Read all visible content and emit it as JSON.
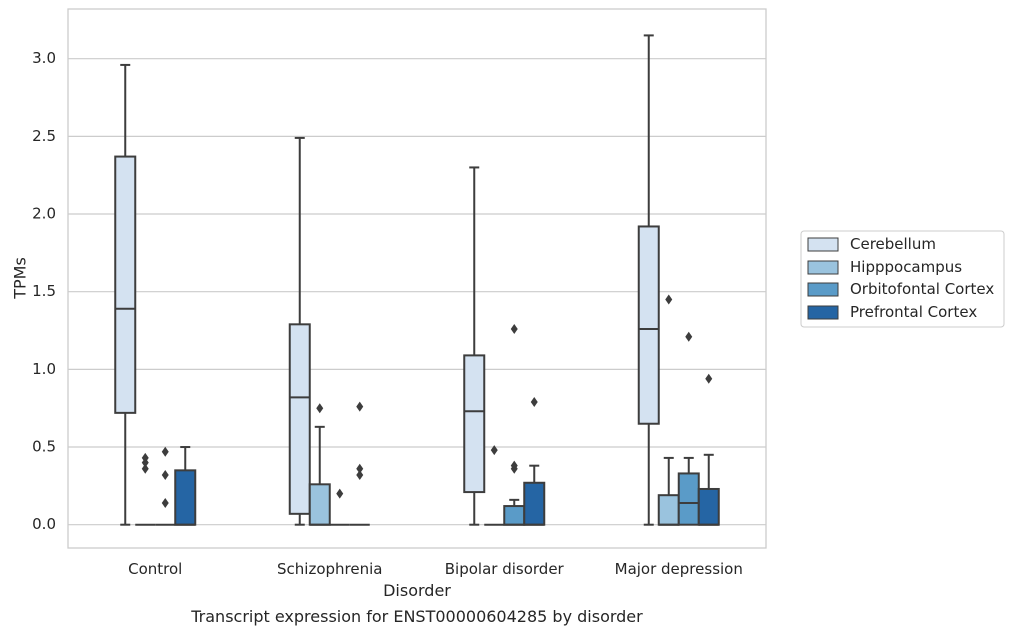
{
  "chart_data": {
    "type": "boxplot",
    "title": "",
    "caption": "Transcript expression for ENST00000604285 by disorder",
    "xlabel": "Disorder",
    "ylabel": "TPMs",
    "ylim": [
      -0.15,
      3.32
    ],
    "yticks": [
      "0.0",
      "0.5",
      "1.0",
      "1.5",
      "2.0",
      "2.5",
      "3.0"
    ],
    "grid": "horizontal",
    "legend_position": "right",
    "categories": [
      "Control",
      "Schizophrenia",
      "Bipolar disorder",
      "Major depression"
    ],
    "series": [
      {
        "name": "Cerebellum",
        "color": "#d4e2f1",
        "boxes": [
          {
            "whislo": 0.0,
            "q1": 0.72,
            "med": 1.39,
            "q3": 2.37,
            "whishi": 2.96,
            "fliers": []
          },
          {
            "whislo": 0.0,
            "q1": 0.07,
            "med": 0.82,
            "q3": 1.29,
            "whishi": 2.49,
            "fliers": []
          },
          {
            "whislo": 0.0,
            "q1": 0.21,
            "med": 0.73,
            "q3": 1.09,
            "whishi": 2.3,
            "fliers": []
          },
          {
            "whislo": 0.0,
            "q1": 0.65,
            "med": 1.26,
            "q3": 1.92,
            "whishi": 3.15,
            "fliers": []
          }
        ]
      },
      {
        "name": "Hipppocampus",
        "color": "#9ac3de",
        "boxes": [
          {
            "whislo": 0.0,
            "q1": 0.0,
            "med": 0.0,
            "q3": 0.0,
            "whishi": 0.0,
            "fliers": [
              0.36,
              0.4,
              0.43
            ]
          },
          {
            "whislo": 0.0,
            "q1": 0.0,
            "med": 0.0,
            "q3": 0.26,
            "whishi": 0.63,
            "fliers": [
              0.75
            ]
          },
          {
            "whislo": 0.0,
            "q1": 0.0,
            "med": 0.0,
            "q3": 0.0,
            "whishi": 0.0,
            "fliers": [
              0.48
            ]
          },
          {
            "whislo": 0.0,
            "q1": 0.0,
            "med": 0.0,
            "q3": 0.19,
            "whishi": 0.43,
            "fliers": [
              1.45
            ]
          }
        ]
      },
      {
        "name": "Orbitofontal Cortex",
        "color": "#5a9bc8",
        "boxes": [
          {
            "whislo": 0.0,
            "q1": 0.0,
            "med": 0.0,
            "q3": 0.0,
            "whishi": 0.0,
            "fliers": [
              0.14,
              0.32,
              0.47
            ]
          },
          {
            "whislo": 0.0,
            "q1": 0.0,
            "med": 0.0,
            "q3": 0.0,
            "whishi": 0.0,
            "fliers": [
              0.2
            ]
          },
          {
            "whislo": 0.0,
            "q1": 0.0,
            "med": 0.0,
            "q3": 0.12,
            "whishi": 0.16,
            "fliers": [
              0.36,
              0.38,
              1.26
            ]
          },
          {
            "whislo": 0.0,
            "q1": 0.0,
            "med": 0.14,
            "q3": 0.33,
            "whishi": 0.43,
            "fliers": [
              1.21
            ]
          }
        ]
      },
      {
        "name": "Prefrontal Cortex",
        "color": "#2565a4",
        "boxes": [
          {
            "whislo": 0.0,
            "q1": 0.0,
            "med": 0.0,
            "q3": 0.35,
            "whishi": 0.5,
            "fliers": []
          },
          {
            "whislo": 0.0,
            "q1": 0.0,
            "med": 0.0,
            "q3": 0.0,
            "whishi": 0.0,
            "fliers": [
              0.32,
              0.36,
              0.76
            ]
          },
          {
            "whislo": 0.0,
            "q1": 0.0,
            "med": 0.0,
            "q3": 0.27,
            "whishi": 0.38,
            "fliers": [
              0.79
            ]
          },
          {
            "whislo": 0.0,
            "q1": 0.0,
            "med": 0.0,
            "q3": 0.23,
            "whishi": 0.45,
            "fliers": [
              0.94
            ]
          }
        ]
      }
    ],
    "colors": {
      "grid": "#cccccc",
      "frame": "#cccccc",
      "line": "#3d3d3d",
      "text": "#262626"
    }
  }
}
